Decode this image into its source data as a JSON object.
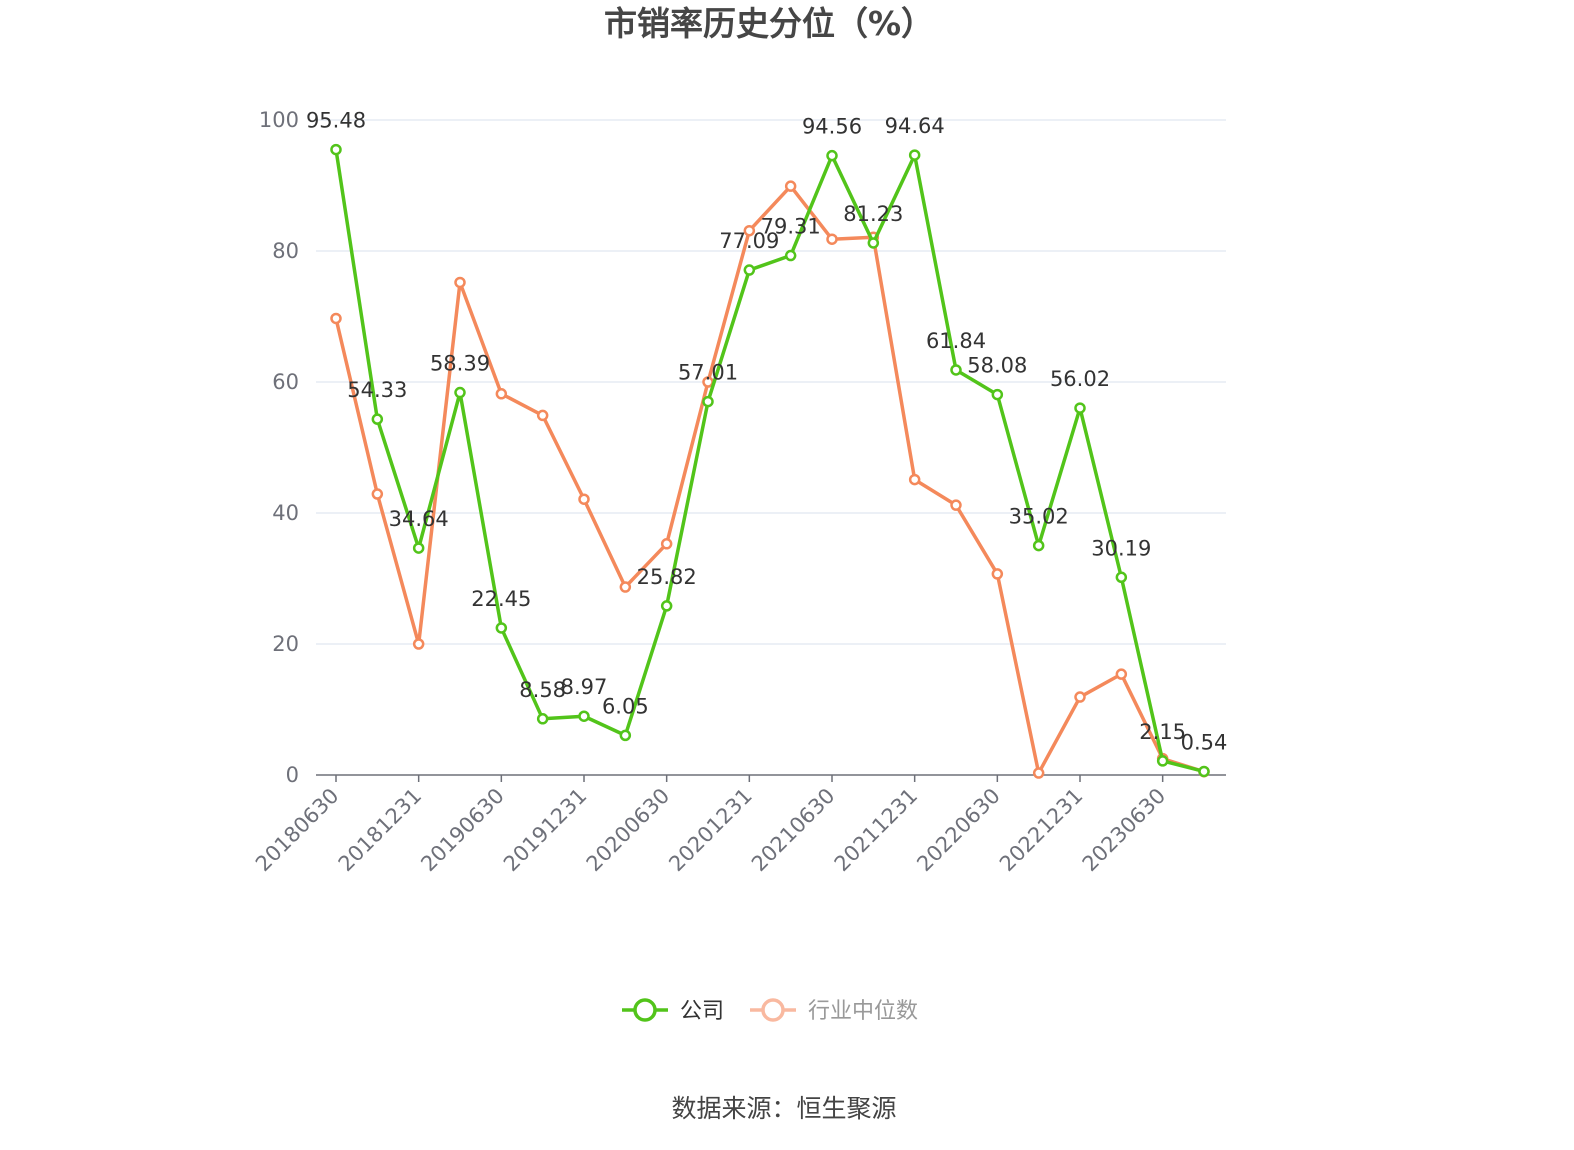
{
  "chart_data": {
    "type": "line",
    "title": "市销率历史分位（%）",
    "xlabel": "",
    "ylabel": "",
    "ylim": [
      0,
      100
    ],
    "yticks": [
      0,
      20,
      40,
      60,
      80,
      100
    ],
    "grid": true,
    "legend_position": "bottom-center",
    "x": [
      "20180630",
      "20180930",
      "20181231",
      "20190331",
      "20190630",
      "20190930",
      "20191231",
      "20200331",
      "20200630",
      "20200930",
      "20201231",
      "20210331",
      "20210630",
      "20210930",
      "20211231",
      "20220331",
      "20220630",
      "20220930",
      "20221231",
      "20230331",
      "20230630",
      "20230930"
    ],
    "x_tick_labels": [
      "20180630",
      "20181231",
      "20190630",
      "20191231",
      "20200630",
      "20201231",
      "20210630",
      "20211231",
      "20220630",
      "20221231",
      "20230630"
    ],
    "series": [
      {
        "name": "公司",
        "color": "#52c41a",
        "values": [
          95.48,
          54.33,
          34.64,
          58.39,
          22.45,
          8.58,
          8.97,
          6.05,
          25.82,
          57.01,
          77.09,
          79.31,
          94.56,
          81.23,
          94.64,
          61.84,
          58.08,
          35.02,
          56.02,
          30.19,
          2.15,
          0.54
        ],
        "labels": [
          "95.48",
          "54.33",
          "34.64",
          "58.39",
          "22.45",
          "8.58",
          "8.97",
          "6.05",
          "25.82",
          "57.01",
          "77.09",
          "79.31",
          "94.56",
          "81.23",
          "94.64",
          "61.84",
          "58.08",
          "35.02",
          "56.02",
          "30.19",
          "2.15",
          "0.54"
        ]
      },
      {
        "name": "行业中位数",
        "color": "#f4895b",
        "values": [
          69.7,
          42.9,
          20.0,
          75.2,
          58.2,
          54.9,
          42.1,
          28.7,
          35.3,
          60.0,
          83.1,
          89.9,
          81.8,
          82.1,
          45.1,
          41.2,
          30.7,
          0.3,
          11.9,
          15.4,
          2.5,
          0.5
        ]
      }
    ]
  },
  "legend": {
    "items": [
      {
        "name": "公司",
        "color": "#52c41a",
        "text_color": "#333333"
      },
      {
        "name": "行业中位数",
        "color": "#f9b9a0",
        "text_color": "#999999"
      }
    ]
  },
  "source_text": "数据来源：恒生聚源"
}
